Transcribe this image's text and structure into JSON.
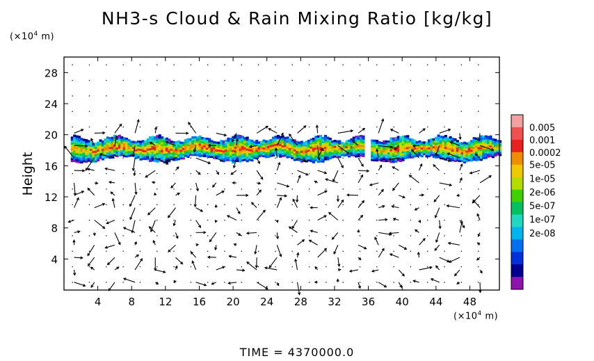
{
  "title": "NH3-s Cloud & Rain Mixing Ratio [kg/kg]",
  "y_unit_label": "(×10⁴ m)",
  "x_unit_label": "(×10⁴ m)",
  "time_label": "TIME  =  4370000.0",
  "chart_data": {
    "type": "heatmap",
    "title": "NH3-s Cloud & Rain Mixing Ratio [kg/kg]",
    "xlabel": "",
    "ylabel": "Height",
    "x_unit": "(×10⁴ m)",
    "y_unit": "(×10⁴ m)",
    "xlim": [
      0,
      51.5
    ],
    "ylim": [
      0,
      30
    ],
    "x_ticks": [
      4,
      8,
      12,
      16,
      20,
      24,
      28,
      32,
      36,
      40,
      44,
      48
    ],
    "y_ticks": [
      4,
      8,
      12,
      16,
      20,
      24,
      28
    ],
    "colorbar": {
      "levels": [
        "0.005",
        "0.001",
        "0.0002",
        "5e-05",
        "1e-05",
        "2e-06",
        "5e-07",
        "1e-07",
        "2e-08"
      ],
      "colors": [
        "#f4a0a0",
        "#f05050",
        "#e82020",
        "#f08c00",
        "#f0c800",
        "#b4dc00",
        "#40d000",
        "#00c060",
        "#20d8c0",
        "#00b4f0",
        "#0070f0",
        "#0030d8",
        "#000090",
        "#9010b0"
      ]
    },
    "cloud_layer": {
      "y_range": [
        16.4,
        19.8
      ],
      "segments": [
        [
          0.8,
          35.5
        ],
        [
          36.3,
          51.5
        ]
      ]
    },
    "vector_field": "wind vectors over the full domain"
  }
}
